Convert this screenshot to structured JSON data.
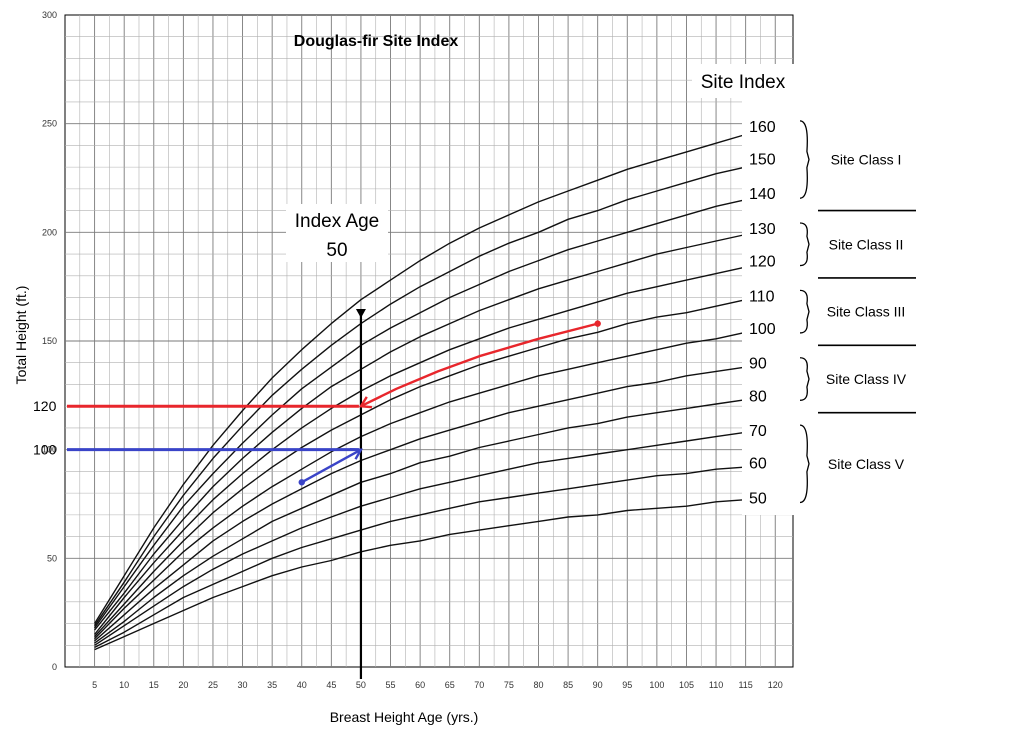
{
  "chart_data": {
    "type": "line",
    "title": "Douglas-fir Site Index",
    "xlabel": "Breast Height Age (yrs.)",
    "ylabel": "Total Height (ft.)",
    "xlim": [
      0,
      120
    ],
    "ylim": [
      0,
      300
    ],
    "x_ticks": [
      5,
      10,
      15,
      20,
      25,
      30,
      35,
      40,
      45,
      50,
      55,
      60,
      65,
      70,
      75,
      80,
      85,
      90,
      95,
      100,
      105,
      110,
      115,
      120
    ],
    "y_ticks": [
      0,
      50,
      100,
      150,
      200,
      250,
      300
    ],
    "grid": true,
    "legend_title": "Site Index",
    "x": [
      5,
      10,
      15,
      20,
      25,
      30,
      35,
      40,
      45,
      50,
      55,
      60,
      65,
      70,
      75,
      80,
      85,
      90,
      95,
      100,
      105,
      110,
      115,
      120
    ],
    "series": [
      {
        "name": "160",
        "values": [
          20,
          42,
          64,
          84,
          102,
          118,
          133,
          146,
          158,
          169,
          178,
          187,
          195,
          202,
          208,
          214,
          219,
          224,
          229,
          233,
          237,
          241,
          245,
          249
        ]
      },
      {
        "name": "150",
        "values": [
          19,
          39,
          60,
          79,
          96,
          111,
          125,
          137,
          148,
          158,
          167,
          175,
          182,
          189,
          195,
          200,
          206,
          210,
          215,
          219,
          223,
          227,
          230,
          234
        ]
      },
      {
        "name": "140",
        "values": [
          18,
          37,
          56,
          74,
          89,
          103,
          116,
          128,
          138,
          148,
          156,
          163,
          170,
          176,
          182,
          187,
          192,
          196,
          200,
          204,
          208,
          212,
          215,
          218
        ]
      },
      {
        "name": "130",
        "values": [
          17,
          34,
          52,
          68,
          83,
          96,
          108,
          119,
          129,
          137,
          145,
          152,
          158,
          164,
          169,
          174,
          178,
          182,
          186,
          190,
          193,
          196,
          199,
          202
        ]
      },
      {
        "name": "120",
        "values": [
          15,
          32,
          48,
          63,
          77,
          89,
          100,
          110,
          119,
          127,
          134,
          140,
          146,
          151,
          156,
          160,
          164,
          168,
          172,
          175,
          178,
          181,
          184,
          187
        ]
      },
      {
        "name": "110",
        "values": [
          14,
          29,
          44,
          58,
          71,
          82,
          92,
          101,
          109,
          116,
          123,
          129,
          134,
          139,
          143,
          147,
          151,
          154,
          158,
          161,
          163,
          166,
          169,
          171
        ]
      },
      {
        "name": "100",
        "values": [
          13,
          27,
          40,
          53,
          64,
          74,
          83,
          91,
          99,
          106,
          112,
          117,
          122,
          126,
          130,
          134,
          137,
          140,
          143,
          146,
          149,
          151,
          154,
          156
        ]
      },
      {
        "name": "90",
        "values": [
          12,
          24,
          36,
          47,
          58,
          67,
          75,
          82,
          89,
          95,
          100,
          105,
          109,
          113,
          117,
          120,
          123,
          126,
          129,
          131,
          134,
          136,
          138,
          140
        ]
      },
      {
        "name": "80",
        "values": [
          11,
          21,
          32,
          42,
          51,
          59,
          67,
          73,
          79,
          85,
          89,
          94,
          97,
          101,
          104,
          107,
          110,
          112,
          115,
          117,
          119,
          121,
          123,
          125
        ]
      },
      {
        "name": "70",
        "values": [
          10,
          19,
          28,
          37,
          45,
          52,
          58,
          64,
          69,
          74,
          78,
          82,
          85,
          88,
          91,
          94,
          96,
          98,
          100,
          102,
          104,
          106,
          108,
          109
        ]
      },
      {
        "name": "60",
        "values": [
          9,
          16,
          24,
          32,
          38,
          44,
          50,
          55,
          59,
          63,
          67,
          70,
          73,
          76,
          78,
          80,
          82,
          84,
          86,
          88,
          89,
          91,
          92,
          94
        ]
      },
      {
        "name": "50",
        "values": [
          8,
          14,
          20,
          26,
          32,
          37,
          42,
          46,
          49,
          53,
          56,
          58,
          61,
          63,
          65,
          67,
          69,
          70,
          72,
          73,
          74,
          76,
          77,
          78
        ]
      }
    ],
    "site_index_label_colors": {
      "120": "#e02020",
      "100": "#3a3ad0"
    },
    "site_classes": [
      "Site Class I",
      "Site Class II",
      "Site Class III",
      "Site Class IV",
      "Site Class V"
    ],
    "index_age_label": "Index Age",
    "index_age_value": "50",
    "index_age": 50,
    "examples": [
      {
        "label": "120",
        "height": 120,
        "color": "#e8262c",
        "path": [
          [
            50,
            120
          ],
          [
            56,
            128
          ],
          [
            63,
            136
          ],
          [
            70,
            143
          ],
          [
            80,
            151
          ],
          [
            90,
            158
          ]
        ],
        "start_dot": [
          90,
          158
        ]
      },
      {
        "label": "100",
        "height": 100,
        "color": "#3a44c8",
        "path": [
          [
            40,
            85
          ],
          [
            50,
            100
          ]
        ],
        "start_dot": [
          40,
          85
        ]
      }
    ]
  }
}
